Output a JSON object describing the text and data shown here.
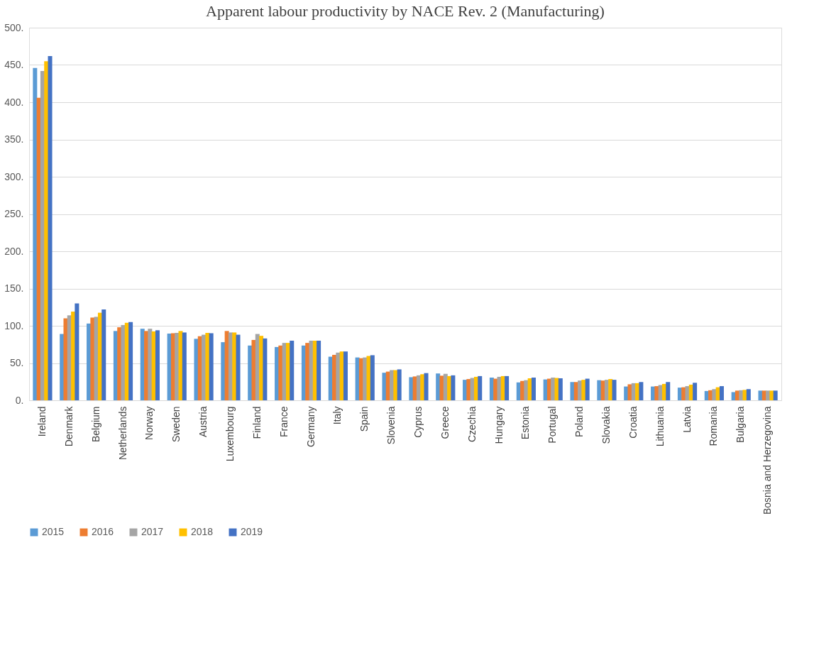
{
  "chart_data": {
    "type": "bar",
    "title": "Apparent labour productivity by NACE Rev. 2 (Manufacturing)",
    "categories": [
      "Ireland",
      "Denmark",
      "Belgium",
      "Netherlands",
      "Norway",
      "Sweden",
      "Austria",
      "Luxembourg",
      "Finland",
      "France",
      "Germany",
      "Italy",
      "Spain",
      "Slovenia",
      "Cyprus",
      "Greece",
      "Czechia",
      "Hungary",
      "Estonia",
      "Portugal",
      "Poland",
      "Slovakia",
      "Croatia",
      "Lithuania",
      "Latvia",
      "Romania",
      "Bulgaria",
      "Bosnia and Herzegovina"
    ],
    "series": [
      {
        "name": "2015",
        "color": "#5b9bd5",
        "values": [
          446,
          89,
          103,
          93,
          96,
          89.5,
          82.5,
          78,
          73.5,
          71.5,
          73.5,
          58.5,
          57.5,
          37,
          31,
          36,
          27.5,
          30.5,
          24,
          28,
          24.5,
          27,
          18.5,
          18.5,
          17,
          12.5,
          11,
          13
        ]
      },
      {
        "name": "2016",
        "color": "#ed7d31",
        "values": [
          406,
          110,
          111,
          98,
          93,
          90,
          86,
          93,
          81,
          73.5,
          77,
          61,
          56.5,
          38.5,
          32,
          33,
          28.5,
          29,
          26,
          29,
          24.5,
          26.5,
          21.5,
          19,
          17.5,
          13.5,
          13,
          13
        ]
      },
      {
        "name": "2017",
        "color": "#a5a5a5",
        "values": [
          442,
          114,
          112,
          101,
          96,
          90.5,
          88,
          91,
          89,
          77,
          80,
          64,
          57.5,
          40.5,
          33.5,
          35.5,
          30,
          31.5,
          27,
          30.5,
          26.5,
          27.5,
          23,
          20.5,
          19,
          15,
          13.5,
          13
        ]
      },
      {
        "name": "2018",
        "color": "#ffc000",
        "values": [
          455,
          119,
          117.5,
          104,
          92.5,
          93,
          90.5,
          91,
          86.5,
          77,
          80,
          65.5,
          59.5,
          40.5,
          35,
          32.5,
          31.5,
          32.5,
          29.5,
          30,
          27.5,
          28.5,
          23,
          22,
          21,
          17.5,
          14,
          13
        ]
      },
      {
        "name": "2019",
        "color": "#4472c4",
        "values": [
          462,
          130,
          122,
          105,
          94,
          91,
          90,
          88,
          83,
          80,
          80,
          65.5,
          60.5,
          41.5,
          36.5,
          33.5,
          32.5,
          32.5,
          30.5,
          29.5,
          29,
          27.5,
          24.5,
          24.5,
          23.5,
          19,
          15,
          13
        ]
      }
    ],
    "ylim": [
      0,
      500
    ],
    "yticks": [
      {
        "value": 0,
        "label": "0."
      },
      {
        "value": 50,
        "label": "50."
      },
      {
        "value": 100,
        "label": "100."
      },
      {
        "value": 150,
        "label": "150."
      },
      {
        "value": 200,
        "label": "200."
      },
      {
        "value": 250,
        "label": "250."
      },
      {
        "value": 300,
        "label": "300."
      },
      {
        "value": 350,
        "label": "350."
      },
      {
        "value": 400,
        "label": "400."
      },
      {
        "value": 450,
        "label": "450."
      },
      {
        "value": 500,
        "label": "500."
      }
    ],
    "grid": "y",
    "legend": "bottom"
  }
}
